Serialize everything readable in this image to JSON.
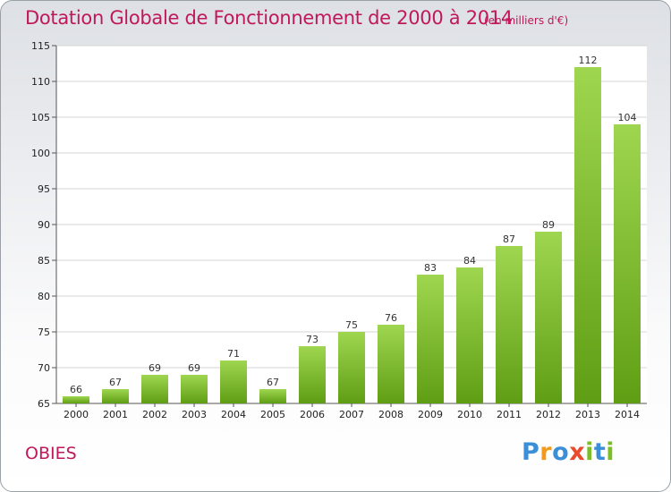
{
  "chart_data": {
    "type": "bar",
    "title": "Dotation Globale de Fonctionnement de 2000 à 2014",
    "unit_note": "(en milliers d'€)",
    "categories": [
      "2000",
      "2001",
      "2002",
      "2003",
      "2004",
      "2005",
      "2006",
      "2007",
      "2008",
      "2009",
      "2010",
      "2011",
      "2012",
      "2013",
      "2014"
    ],
    "values": [
      66,
      67,
      69,
      69,
      71,
      67,
      73,
      75,
      76,
      83,
      84,
      87,
      89,
      112,
      104
    ],
    "ylim": [
      65,
      115
    ],
    "yticks": [
      65,
      70,
      75,
      80,
      85,
      90,
      95,
      100,
      105,
      110,
      115
    ],
    "grid": "horizontal",
    "bar_color_top": "#9fd650",
    "bar_color_bottom": "#5f9e14",
    "xlabel": "",
    "ylabel": ""
  },
  "commune_name": "OBIES",
  "logo": {
    "p": "P",
    "r": "r",
    "o": "o",
    "x": "x",
    "i": "i",
    "t": "t",
    "i2": "i"
  },
  "colors": {
    "accent": "#c0185a"
  }
}
